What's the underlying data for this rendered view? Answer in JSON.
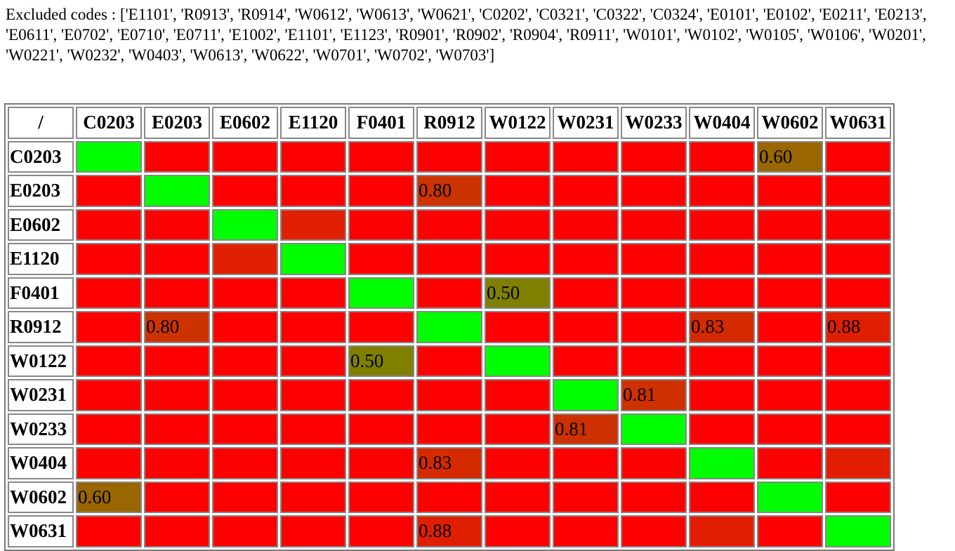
{
  "excluded": {
    "label": "Excluded codes : ",
    "codes_text": "['E1101', 'R0913', 'R0914', 'W0612', 'W0613', 'W0621', 'C0202', 'C0321', 'C0322', 'C0324', 'E0101', 'E0102', 'E0211', 'E0213', 'E0611', 'E0702', 'E0710', 'E0711', 'E1002', 'E1101', 'E1123', 'R0901', 'R0902', 'R0904', 'R0911', 'W0101', 'W0102', 'W0105', 'W0106', 'W0201', 'W0221', 'W0232', 'W0403', 'W0613', 'W0622', 'W0701', 'W0702', 'W0703']"
  },
  "matrix": {
    "corner": "/",
    "codes": [
      "C0203",
      "E0203",
      "E0602",
      "E1120",
      "F0401",
      "R0912",
      "W0122",
      "W0231",
      "W0233",
      "W0404",
      "W0602",
      "W0631"
    ],
    "colors": {
      "diagonal": "#00ff00",
      "default": "#ff0000",
      "e0602_e1120": "#e02000",
      "w0404_w0631": "#e21d00",
      "v080": "#cc3300",
      "v060": "#996600",
      "v050": "#808000",
      "v083": "#d52a00",
      "v088": "#e01f00",
      "v081": "#cf3000"
    },
    "cells": [
      [
        {
          "c": "diagonal",
          "t": ""
        },
        {
          "c": "default",
          "t": ""
        },
        {
          "c": "default",
          "t": ""
        },
        {
          "c": "default",
          "t": ""
        },
        {
          "c": "default",
          "t": ""
        },
        {
          "c": "default",
          "t": ""
        },
        {
          "c": "default",
          "t": ""
        },
        {
          "c": "default",
          "t": ""
        },
        {
          "c": "default",
          "t": ""
        },
        {
          "c": "default",
          "t": ""
        },
        {
          "c": "v060",
          "t": "0.60"
        },
        {
          "c": "default",
          "t": ""
        }
      ],
      [
        {
          "c": "default",
          "t": ""
        },
        {
          "c": "diagonal",
          "t": ""
        },
        {
          "c": "default",
          "t": ""
        },
        {
          "c": "default",
          "t": ""
        },
        {
          "c": "default",
          "t": ""
        },
        {
          "c": "v080",
          "t": "0.80"
        },
        {
          "c": "default",
          "t": ""
        },
        {
          "c": "default",
          "t": ""
        },
        {
          "c": "default",
          "t": ""
        },
        {
          "c": "default",
          "t": ""
        },
        {
          "c": "default",
          "t": ""
        },
        {
          "c": "default",
          "t": ""
        }
      ],
      [
        {
          "c": "default",
          "t": ""
        },
        {
          "c": "default",
          "t": ""
        },
        {
          "c": "diagonal",
          "t": ""
        },
        {
          "c": "e0602_e1120",
          "t": ""
        },
        {
          "c": "default",
          "t": ""
        },
        {
          "c": "default",
          "t": ""
        },
        {
          "c": "default",
          "t": ""
        },
        {
          "c": "default",
          "t": ""
        },
        {
          "c": "default",
          "t": ""
        },
        {
          "c": "default",
          "t": ""
        },
        {
          "c": "default",
          "t": ""
        },
        {
          "c": "default",
          "t": ""
        }
      ],
      [
        {
          "c": "default",
          "t": ""
        },
        {
          "c": "default",
          "t": ""
        },
        {
          "c": "e0602_e1120",
          "t": ""
        },
        {
          "c": "diagonal",
          "t": ""
        },
        {
          "c": "default",
          "t": ""
        },
        {
          "c": "default",
          "t": ""
        },
        {
          "c": "default",
          "t": ""
        },
        {
          "c": "default",
          "t": ""
        },
        {
          "c": "default",
          "t": ""
        },
        {
          "c": "default",
          "t": ""
        },
        {
          "c": "default",
          "t": ""
        },
        {
          "c": "default",
          "t": ""
        }
      ],
      [
        {
          "c": "default",
          "t": ""
        },
        {
          "c": "default",
          "t": ""
        },
        {
          "c": "default",
          "t": ""
        },
        {
          "c": "default",
          "t": ""
        },
        {
          "c": "diagonal",
          "t": ""
        },
        {
          "c": "default",
          "t": ""
        },
        {
          "c": "v050",
          "t": "0.50"
        },
        {
          "c": "default",
          "t": ""
        },
        {
          "c": "default",
          "t": ""
        },
        {
          "c": "default",
          "t": ""
        },
        {
          "c": "default",
          "t": ""
        },
        {
          "c": "default",
          "t": ""
        }
      ],
      [
        {
          "c": "default",
          "t": ""
        },
        {
          "c": "v080",
          "t": "0.80"
        },
        {
          "c": "default",
          "t": ""
        },
        {
          "c": "default",
          "t": ""
        },
        {
          "c": "default",
          "t": ""
        },
        {
          "c": "diagonal",
          "t": ""
        },
        {
          "c": "default",
          "t": ""
        },
        {
          "c": "default",
          "t": ""
        },
        {
          "c": "default",
          "t": ""
        },
        {
          "c": "v083",
          "t": "0.83"
        },
        {
          "c": "default",
          "t": ""
        },
        {
          "c": "v088",
          "t": "0.88"
        }
      ],
      [
        {
          "c": "default",
          "t": ""
        },
        {
          "c": "default",
          "t": ""
        },
        {
          "c": "default",
          "t": ""
        },
        {
          "c": "default",
          "t": ""
        },
        {
          "c": "v050",
          "t": "0.50"
        },
        {
          "c": "default",
          "t": ""
        },
        {
          "c": "diagonal",
          "t": ""
        },
        {
          "c": "default",
          "t": ""
        },
        {
          "c": "default",
          "t": ""
        },
        {
          "c": "default",
          "t": ""
        },
        {
          "c": "default",
          "t": ""
        },
        {
          "c": "default",
          "t": ""
        }
      ],
      [
        {
          "c": "default",
          "t": ""
        },
        {
          "c": "default",
          "t": ""
        },
        {
          "c": "default",
          "t": ""
        },
        {
          "c": "default",
          "t": ""
        },
        {
          "c": "default",
          "t": ""
        },
        {
          "c": "default",
          "t": ""
        },
        {
          "c": "default",
          "t": ""
        },
        {
          "c": "diagonal",
          "t": ""
        },
        {
          "c": "v081",
          "t": "0.81"
        },
        {
          "c": "default",
          "t": ""
        },
        {
          "c": "default",
          "t": ""
        },
        {
          "c": "default",
          "t": ""
        }
      ],
      [
        {
          "c": "default",
          "t": ""
        },
        {
          "c": "default",
          "t": ""
        },
        {
          "c": "default",
          "t": ""
        },
        {
          "c": "default",
          "t": ""
        },
        {
          "c": "default",
          "t": ""
        },
        {
          "c": "default",
          "t": ""
        },
        {
          "c": "default",
          "t": ""
        },
        {
          "c": "v081",
          "t": "0.81"
        },
        {
          "c": "diagonal",
          "t": ""
        },
        {
          "c": "default",
          "t": ""
        },
        {
          "c": "default",
          "t": ""
        },
        {
          "c": "default",
          "t": ""
        }
      ],
      [
        {
          "c": "default",
          "t": ""
        },
        {
          "c": "default",
          "t": ""
        },
        {
          "c": "default",
          "t": ""
        },
        {
          "c": "default",
          "t": ""
        },
        {
          "c": "default",
          "t": ""
        },
        {
          "c": "v083",
          "t": "0.83"
        },
        {
          "c": "default",
          "t": ""
        },
        {
          "c": "default",
          "t": ""
        },
        {
          "c": "default",
          "t": ""
        },
        {
          "c": "diagonal",
          "t": ""
        },
        {
          "c": "default",
          "t": ""
        },
        {
          "c": "w0404_w0631",
          "t": ""
        }
      ],
      [
        {
          "c": "v060",
          "t": "0.60"
        },
        {
          "c": "default",
          "t": ""
        },
        {
          "c": "default",
          "t": ""
        },
        {
          "c": "default",
          "t": ""
        },
        {
          "c": "default",
          "t": ""
        },
        {
          "c": "default",
          "t": ""
        },
        {
          "c": "default",
          "t": ""
        },
        {
          "c": "default",
          "t": ""
        },
        {
          "c": "default",
          "t": ""
        },
        {
          "c": "default",
          "t": ""
        },
        {
          "c": "diagonal",
          "t": ""
        },
        {
          "c": "default",
          "t": ""
        }
      ],
      [
        {
          "c": "default",
          "t": ""
        },
        {
          "c": "default",
          "t": ""
        },
        {
          "c": "default",
          "t": ""
        },
        {
          "c": "default",
          "t": ""
        },
        {
          "c": "default",
          "t": ""
        },
        {
          "c": "v088",
          "t": "0.88"
        },
        {
          "c": "default",
          "t": ""
        },
        {
          "c": "default",
          "t": ""
        },
        {
          "c": "default",
          "t": ""
        },
        {
          "c": "w0404_w0631",
          "t": ""
        },
        {
          "c": "default",
          "t": ""
        },
        {
          "c": "diagonal",
          "t": ""
        }
      ]
    ]
  }
}
